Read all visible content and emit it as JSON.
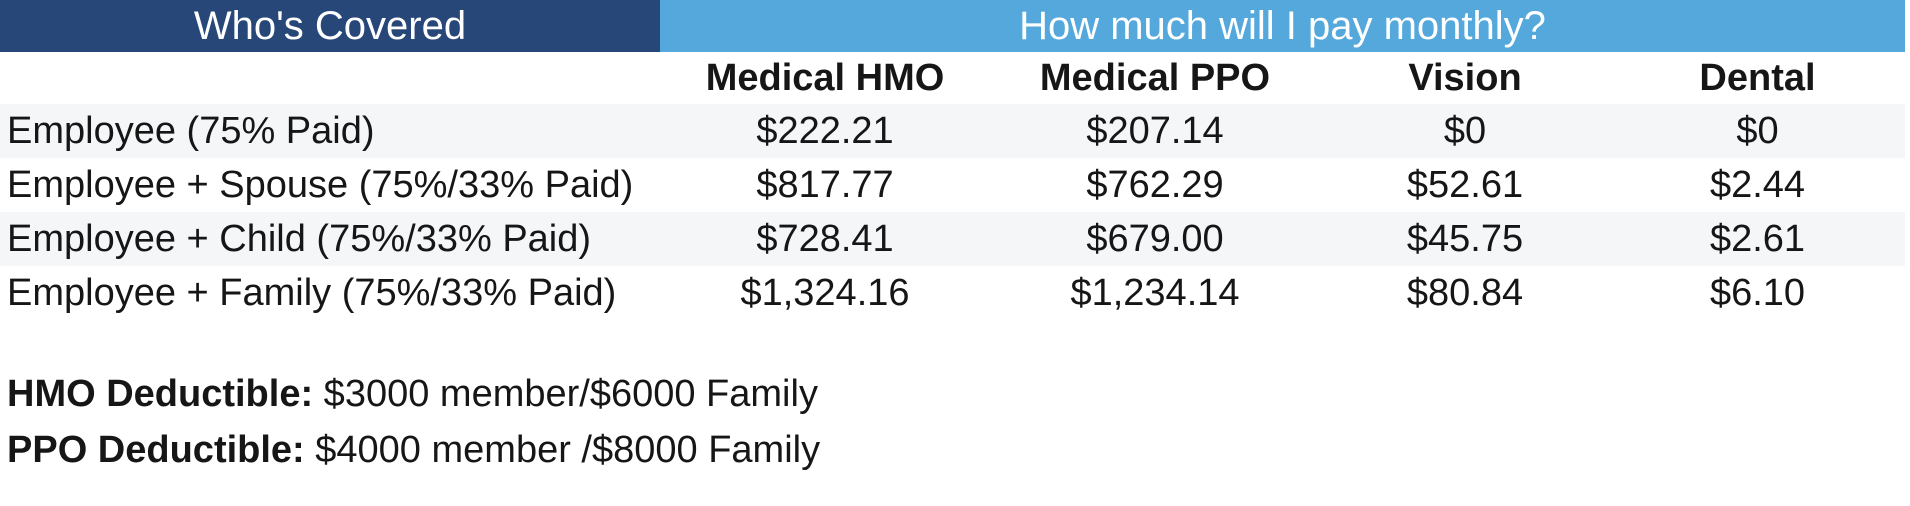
{
  "table": {
    "header_groups": [
      {
        "label": "Who's Covered"
      },
      {
        "label": "How much will I pay monthly?"
      }
    ],
    "columns": [
      "Medical HMO",
      "Medical PPO",
      "Vision",
      "Dental"
    ],
    "rows": [
      {
        "label": "Employee (75% Paid)",
        "values": [
          "$222.21",
          "$207.14",
          "$0",
          "$0"
        ]
      },
      {
        "label": "Employee + Spouse (75%/33% Paid)",
        "values": [
          "$817.77",
          "$762.29",
          "$52.61",
          "$2.44"
        ]
      },
      {
        "label": "Employee + Child (75%/33% Paid)",
        "values": [
          "$728.41",
          "$679.00",
          "$45.75",
          "$2.61"
        ]
      },
      {
        "label": "Employee + Family (75%/33% Paid)",
        "values": [
          "$1,324.16",
          "$1,234.14",
          "$80.84",
          "$6.10"
        ]
      }
    ]
  },
  "notes": [
    {
      "label": "HMO Deductible:",
      "text": " $3000 member/$6000 Family"
    },
    {
      "label": "PPO Deductible:",
      "text": " $4000 member /$8000 Family"
    }
  ],
  "colors": {
    "header_left_bg": "#274779",
    "header_right_bg": "#55a8db",
    "stripe_row_bg": "#f4f6f8",
    "header_text": "#ffffff",
    "body_text": "#161616"
  }
}
